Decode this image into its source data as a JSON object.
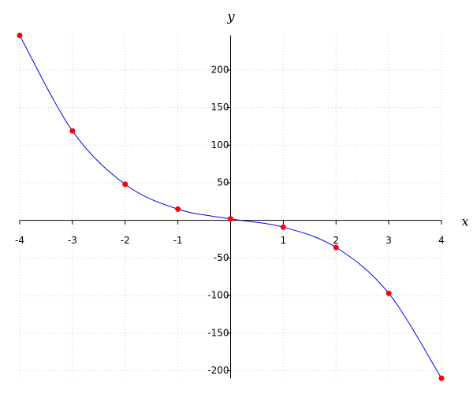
{
  "chart_data": {
    "type": "line",
    "x_label": "x",
    "y_label": "y",
    "x": [
      -4,
      -3,
      -2,
      -1,
      0,
      1,
      2,
      3,
      4
    ],
    "series": [
      {
        "color": "#0000ff",
        "marker_color": "#ff0000",
        "values": [
          246,
          119,
          48,
          15,
          2,
          -9,
          -36,
          -97,
          -210
        ]
      }
    ],
    "xlim": [
      -4,
      4
    ],
    "ylim": [
      -210,
      246
    ],
    "xticks": [
      -4,
      -3,
      -2,
      -1,
      1,
      2,
      3,
      4
    ],
    "yticks": [
      -200,
      -150,
      -100,
      -50,
      50,
      100,
      150,
      200
    ],
    "grid": true
  }
}
